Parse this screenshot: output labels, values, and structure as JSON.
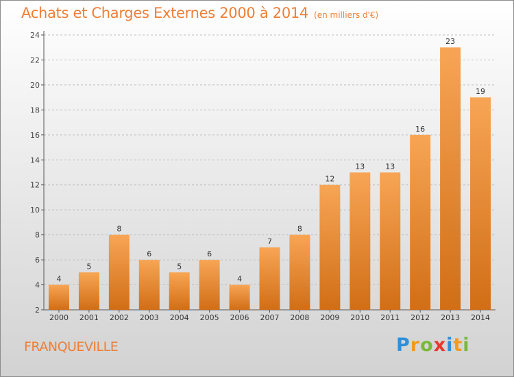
{
  "title": "Achats et Charges Externes 2000 à 2014",
  "subtitle": "(en milliers d'€)",
  "location": "FRANQUEVILLE",
  "logo": {
    "text": "Proxiti",
    "letters": [
      {
        "ch": "P",
        "color": "#2f8fd8"
      },
      {
        "ch": "r",
        "color": "#f39a1e"
      },
      {
        "ch": "o",
        "color": "#7ab83a"
      },
      {
        "ch": "x",
        "color": "#e8372c"
      },
      {
        "ch": "i",
        "color": "#2f8fd8"
      },
      {
        "ch": "t",
        "color": "#f39a1e"
      },
      {
        "ch": "i",
        "color": "#7ab83a"
      }
    ]
  },
  "colors": {
    "bar_top": "#f7a555",
    "bar_bottom": "#d16e16",
    "title": "#ee7e36",
    "grid": "#bdbdbd"
  },
  "chart_data": {
    "type": "bar",
    "title": "Achats et Charges Externes 2000 à 2014",
    "subtitle": "(en milliers d'€)",
    "categories": [
      "2000",
      "2001",
      "2002",
      "2003",
      "2004",
      "2005",
      "2006",
      "2007",
      "2008",
      "2009",
      "2010",
      "2011",
      "2012",
      "2013",
      "2014"
    ],
    "values": [
      4,
      5,
      8,
      6,
      5,
      6,
      4,
      7,
      8,
      12,
      13,
      13,
      16,
      23,
      19
    ],
    "data_labels": [
      "4",
      "5",
      "8",
      "6",
      "5",
      "6",
      "4",
      "7",
      "8",
      "12",
      "13",
      "13",
      "16",
      "23",
      "19"
    ],
    "ylim": [
      2,
      24
    ],
    "yticks": [
      2,
      4,
      6,
      8,
      10,
      12,
      14,
      16,
      18,
      20,
      22,
      24
    ],
    "xlabel": "",
    "ylabel": "",
    "grid": true,
    "grid_style": "dashed-horizontal",
    "legend": "none"
  }
}
